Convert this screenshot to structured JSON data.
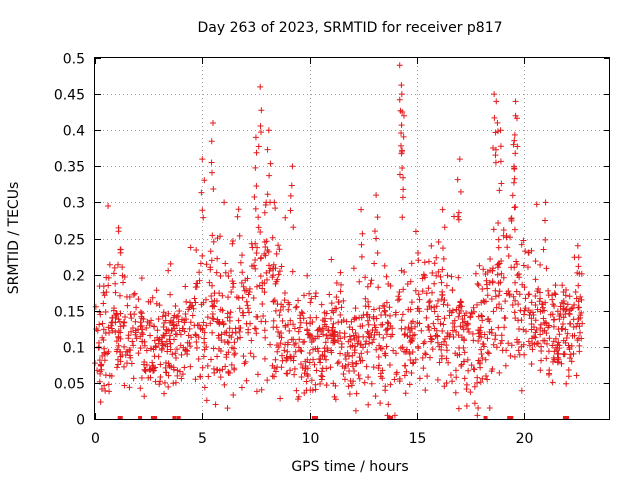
{
  "chart_data": {
    "type": "scatter",
    "title": "Day 263 of 2023, SRMTID for receiver p817",
    "xlabel": "GPS time / hours",
    "ylabel": "SRMTID / TECUs",
    "xlim": [
      0,
      24
    ],
    "ylim": [
      0,
      0.5
    ],
    "x_ticks": [
      0,
      5,
      10,
      15,
      20
    ],
    "x_tick_labels": [
      "0",
      "5",
      "10",
      "15",
      "20"
    ],
    "y_ticks": [
      0,
      0.05,
      0.1,
      0.15,
      0.2,
      0.25,
      0.3,
      0.35,
      0.4,
      0.45,
      0.5
    ],
    "y_tick_labels": [
      "0",
      "0.05",
      "0.1",
      "0.15",
      "0.2",
      "0.25",
      "0.3",
      "0.35",
      "0.4",
      "0.45",
      "0.5"
    ],
    "grid": true,
    "marker": "plus",
    "color": "#e41a1c",
    "trend": {
      "hours": [
        0,
        1,
        2,
        3,
        4,
        5,
        6,
        7,
        7.5,
        8,
        9,
        10,
        11,
        12,
        13,
        14,
        15,
        16,
        17,
        18,
        19,
        20,
        21,
        22,
        22.8
      ],
      "center": [
        0.1,
        0.12,
        0.11,
        0.1,
        0.11,
        0.14,
        0.13,
        0.16,
        0.19,
        0.18,
        0.12,
        0.1,
        0.12,
        0.1,
        0.12,
        0.11,
        0.13,
        0.16,
        0.1,
        0.11,
        0.18,
        0.16,
        0.13,
        0.12,
        0.14
      ],
      "spread": [
        0.05,
        0.07,
        0.05,
        0.05,
        0.05,
        0.08,
        0.07,
        0.08,
        0.09,
        0.09,
        0.06,
        0.05,
        0.05,
        0.05,
        0.07,
        0.06,
        0.06,
        0.08,
        0.06,
        0.07,
        0.09,
        0.07,
        0.05,
        0.05,
        0.04
      ]
    },
    "peaks": [
      {
        "x": 1.1,
        "y": 0.26
      },
      {
        "x": 5.0,
        "y": 0.36
      },
      {
        "x": 5.5,
        "y": 0.41
      },
      {
        "x": 7.5,
        "y": 0.39
      },
      {
        "x": 7.7,
        "y": 0.46
      },
      {
        "x": 8.1,
        "y": 0.4
      },
      {
        "x": 9.2,
        "y": 0.35
      },
      {
        "x": 12.4,
        "y": 0.29
      },
      {
        "x": 13.1,
        "y": 0.31
      },
      {
        "x": 14.2,
        "y": 0.49
      },
      {
        "x": 14.3,
        "y": 0.45
      },
      {
        "x": 14.4,
        "y": 0.42
      },
      {
        "x": 14.3,
        "y": 0.37
      },
      {
        "x": 16.2,
        "y": 0.29
      },
      {
        "x": 17.0,
        "y": 0.36
      },
      {
        "x": 18.6,
        "y": 0.45
      },
      {
        "x": 18.7,
        "y": 0.44
      },
      {
        "x": 18.9,
        "y": 0.4
      },
      {
        "x": 19.6,
        "y": 0.44
      },
      {
        "x": 19.6,
        "y": 0.42
      },
      {
        "x": 19.5,
        "y": 0.38
      },
      {
        "x": 21.0,
        "y": 0.3
      },
      {
        "x": 22.5,
        "y": 0.24
      }
    ],
    "gaps_x": [
      1.15,
      1.2,
      2.1,
      2.7,
      2.8,
      3.7,
      3.9,
      10.2,
      10.3,
      13.7,
      13.8,
      18.2,
      19.3,
      19.4,
      21.9,
      22.0
    ]
  }
}
